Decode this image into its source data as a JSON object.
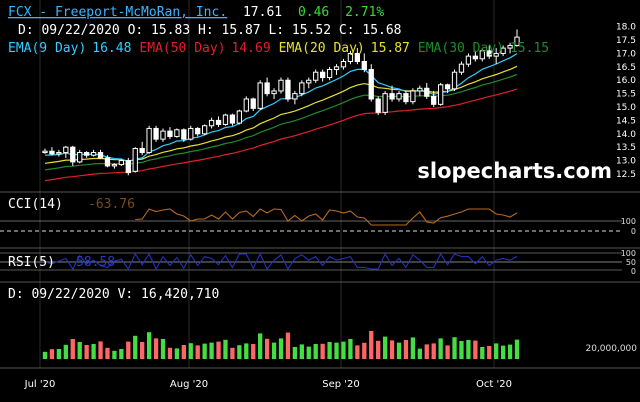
{
  "header": {
    "ticker_title": "FCX - Freeport-McMoRan, Inc.",
    "last": "17.61",
    "change": "0.46",
    "change_pct": "2.71%",
    "ohlc": "D: 09/22/2020 O: 15.83 H: 15.87 L: 15.52 C: 15.68"
  },
  "ema_legend": [
    {
      "label": "EMA(9 Day)",
      "value": "16.48",
      "color": "#33ccff"
    },
    {
      "label": "EMA(50 Day)",
      "value": "14.69",
      "color": "#e0202a"
    },
    {
      "label": "EMA(20 Day)",
      "value": "15.87",
      "color": "#e8e030"
    },
    {
      "label": "EMA(30 Day)",
      "value": "15.15",
      "color": "#1f8a2a"
    }
  ],
  "watermark": "slopecharts.com",
  "colors": {
    "up": "#ffffff",
    "down": "#ffffff",
    "grid": "#2a2a2a",
    "cci": "#b86a1e",
    "rsi": "#2233bb",
    "vol_up": "#44dd44",
    "vol_down": "#ff6666",
    "vol_neutral": "#ff8888"
  },
  "cci_panel": {
    "label": "CCI(14)",
    "value": "-63.76",
    "ticks": [
      "100",
      "0"
    ]
  },
  "rsi_panel": {
    "label": "RSI(5)",
    "value": "58.58",
    "ticks": [
      "100",
      "50",
      "0"
    ]
  },
  "volume_panel": {
    "label": "D: 09/22/2020 V: 16,420,710",
    "tick": "20,000,000"
  },
  "x_labels": [
    "Jul '20",
    "Aug '20",
    "Sep '20",
    "Oct '20"
  ],
  "chart_data": {
    "type": "candlestick",
    "y_ticks": [
      "18.0",
      "17.5",
      "17.0",
      "16.5",
      "16.0",
      "15.5",
      "15.0",
      "14.5",
      "14.0",
      "13.5",
      "13.0",
      "12.5"
    ],
    "ylim": [
      12.2,
      18.1
    ],
    "candles": [
      [
        13.3,
        13.45,
        13.25,
        13.35
      ],
      [
        13.35,
        13.5,
        13.2,
        13.25
      ],
      [
        13.25,
        13.4,
        13.15,
        13.3
      ],
      [
        13.3,
        13.55,
        13.1,
        13.5
      ],
      [
        13.5,
        13.55,
        12.8,
        12.95
      ],
      [
        12.95,
        13.4,
        12.9,
        13.3
      ],
      [
        13.3,
        13.35,
        13.1,
        13.2
      ],
      [
        13.2,
        13.4,
        13.15,
        13.3
      ],
      [
        13.3,
        13.4,
        13.05,
        13.1
      ],
      [
        13.1,
        13.2,
        12.75,
        12.8
      ],
      [
        12.8,
        12.9,
        12.7,
        12.85
      ],
      [
        12.85,
        13.05,
        12.8,
        13.0
      ],
      [
        13.0,
        13.1,
        12.45,
        12.55
      ],
      [
        12.6,
        13.5,
        12.55,
        13.45
      ],
      [
        13.45,
        13.7,
        13.2,
        13.3
      ],
      [
        13.3,
        14.3,
        13.25,
        14.2
      ],
      [
        14.2,
        14.3,
        13.7,
        13.8
      ],
      [
        13.8,
        14.2,
        13.7,
        14.1
      ],
      [
        14.1,
        14.25,
        13.8,
        13.9
      ],
      [
        13.9,
        14.2,
        13.85,
        14.15
      ],
      [
        14.15,
        14.2,
        13.7,
        13.8
      ],
      [
        13.8,
        14.3,
        13.75,
        14.2
      ],
      [
        14.2,
        14.25,
        13.9,
        14.0
      ],
      [
        14.0,
        14.35,
        13.95,
        14.3
      ],
      [
        14.3,
        14.6,
        14.2,
        14.5
      ],
      [
        14.5,
        14.65,
        14.25,
        14.35
      ],
      [
        14.35,
        14.75,
        14.3,
        14.7
      ],
      [
        14.7,
        14.75,
        14.3,
        14.4
      ],
      [
        14.4,
        14.9,
        14.35,
        14.85
      ],
      [
        14.85,
        15.4,
        14.8,
        15.3
      ],
      [
        15.3,
        15.35,
        14.85,
        14.95
      ],
      [
        14.95,
        16.0,
        14.9,
        15.9
      ],
      [
        15.9,
        16.1,
        15.4,
        15.5
      ],
      [
        15.5,
        15.7,
        15.3,
        15.6
      ],
      [
        15.6,
        16.1,
        15.5,
        16.0
      ],
      [
        16.0,
        16.1,
        15.2,
        15.3
      ],
      [
        15.3,
        15.6,
        15.1,
        15.5
      ],
      [
        15.5,
        16.0,
        15.4,
        15.9
      ],
      [
        15.9,
        16.1,
        15.7,
        16.0
      ],
      [
        16.0,
        16.4,
        15.9,
        16.3
      ],
      [
        16.3,
        16.4,
        15.95,
        16.1
      ],
      [
        16.1,
        16.5,
        16.0,
        16.4
      ],
      [
        16.4,
        16.6,
        16.2,
        16.5
      ],
      [
        16.5,
        16.8,
        16.4,
        16.7
      ],
      [
        16.7,
        17.1,
        16.6,
        17.0
      ],
      [
        17.0,
        17.2,
        16.6,
        16.7
      ],
      [
        16.7,
        17.0,
        16.3,
        16.4
      ],
      [
        16.4,
        16.6,
        15.2,
        15.3
      ],
      [
        15.3,
        15.4,
        14.7,
        14.8
      ],
      [
        14.8,
        15.6,
        14.7,
        15.5
      ],
      [
        15.5,
        15.8,
        15.2,
        15.3
      ],
      [
        15.3,
        15.6,
        15.2,
        15.5
      ],
      [
        15.5,
        15.6,
        15.1,
        15.2
      ],
      [
        15.2,
        15.7,
        15.1,
        15.6
      ],
      [
        15.6,
        15.8,
        15.4,
        15.7
      ],
      [
        15.7,
        15.9,
        15.3,
        15.4
      ],
      [
        15.4,
        15.6,
        15.0,
        15.1
      ],
      [
        15.1,
        15.9,
        15.05,
        15.83
      ],
      [
        15.83,
        15.87,
        15.52,
        15.68
      ],
      [
        15.68,
        16.4,
        15.6,
        16.3
      ],
      [
        16.3,
        16.7,
        16.2,
        16.6
      ],
      [
        16.6,
        17.0,
        16.5,
        16.9
      ],
      [
        16.9,
        17.1,
        16.7,
        16.8
      ],
      [
        16.8,
        17.2,
        16.7,
        17.1
      ],
      [
        17.1,
        17.3,
        16.8,
        16.9
      ],
      [
        16.9,
        17.2,
        16.6,
        17.0
      ],
      [
        17.0,
        17.3,
        16.9,
        17.2
      ],
      [
        17.2,
        17.4,
        17.0,
        17.3
      ],
      [
        17.3,
        17.9,
        17.25,
        17.61
      ]
    ]
  }
}
